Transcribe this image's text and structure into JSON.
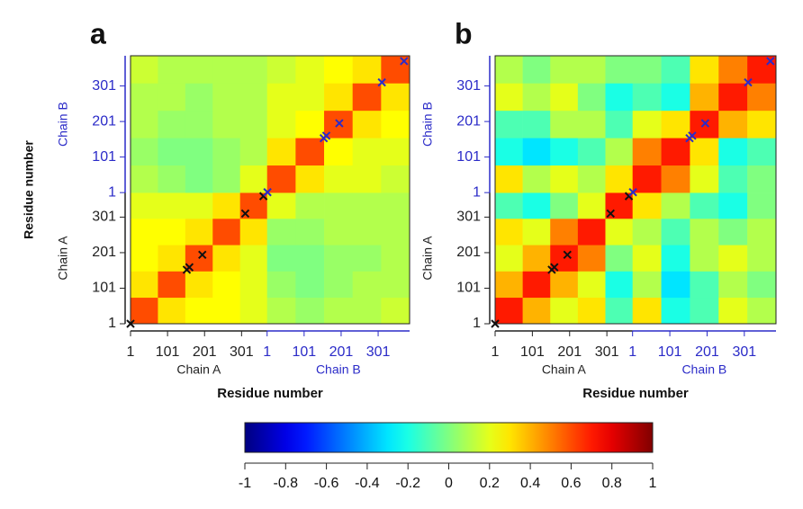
{
  "chart_data": [
    {
      "type": "heatmap",
      "panel": "a",
      "x_label": "Residue number",
      "y_label": "Residue number",
      "xlim": [
        1,
        755
      ],
      "ylim": [
        1,
        755
      ],
      "xticks": [
        1,
        101,
        201,
        301,
        {
          "value": 370,
          "label": "1"
        },
        {
          "value": 470,
          "label": "101"
        },
        {
          "value": 570,
          "label": "201"
        },
        {
          "value": 670,
          "label": "301"
        }
      ],
      "yticks": [
        1,
        101,
        201,
        301,
        {
          "value": 370,
          "label": "1"
        },
        {
          "value": 470,
          "label": "101"
        },
        {
          "value": 570,
          "label": "201"
        },
        {
          "value": 670,
          "label": "301"
        }
      ],
      "chains": [
        {
          "name": "Chain A",
          "start": 1,
          "color": "#222222"
        },
        {
          "name": "Chain B",
          "start": 370,
          "color": "#2b2bc8"
        }
      ],
      "bins": [
        1,
        75,
        149,
        223,
        297,
        370,
        447,
        524,
        601,
        678,
        755
      ],
      "z": [
        [
          0.6,
          0.3,
          0.25,
          0.25,
          0.2,
          0.1,
          0.05,
          0.1,
          0.1,
          0.15
        ],
        [
          0.3,
          0.6,
          0.3,
          0.25,
          0.2,
          0.05,
          0.0,
          0.05,
          0.1,
          0.1
        ],
        [
          0.25,
          0.3,
          0.6,
          0.3,
          0.2,
          0.0,
          0.0,
          0.05,
          0.05,
          0.1
        ],
        [
          0.25,
          0.25,
          0.3,
          0.6,
          0.3,
          0.05,
          0.05,
          0.1,
          0.1,
          0.1
        ],
        [
          0.2,
          0.2,
          0.2,
          0.3,
          0.6,
          0.2,
          0.1,
          0.1,
          0.1,
          0.1
        ],
        [
          0.1,
          0.05,
          0.0,
          0.05,
          0.2,
          0.6,
          0.3,
          0.2,
          0.2,
          0.15
        ],
        [
          0.05,
          0.0,
          0.0,
          0.05,
          0.1,
          0.3,
          0.6,
          0.25,
          0.2,
          0.2
        ],
        [
          0.1,
          0.05,
          0.05,
          0.1,
          0.1,
          0.2,
          0.25,
          0.6,
          0.3,
          0.25
        ],
        [
          0.1,
          0.1,
          0.05,
          0.1,
          0.1,
          0.2,
          0.2,
          0.3,
          0.6,
          0.3
        ],
        [
          0.15,
          0.1,
          0.1,
          0.1,
          0.1,
          0.15,
          0.2,
          0.25,
          0.3,
          0.6
        ]
      ],
      "markers": [
        {
          "color": "#111111",
          "x": [
            1,
            153,
            160,
            195,
            311,
            360
          ]
        },
        {
          "color": "#2b2bc8",
          "x": [
            371,
            523,
            530,
            565,
            680,
            740
          ]
        }
      ]
    },
    {
      "type": "heatmap",
      "panel": "b",
      "x_label": "Residue number",
      "y_label": "Residue number",
      "xlim": [
        1,
        755
      ],
      "ylim": [
        1,
        755
      ],
      "xticks": [
        1,
        101,
        201,
        301,
        {
          "value": 370,
          "label": "1"
        },
        {
          "value": 470,
          "label": "101"
        },
        {
          "value": 570,
          "label": "201"
        },
        {
          "value": 670,
          "label": "301"
        }
      ],
      "yticks": [
        1,
        101,
        201,
        301,
        {
          "value": 370,
          "label": "1"
        },
        {
          "value": 470,
          "label": "101"
        },
        {
          "value": 570,
          "label": "201"
        },
        {
          "value": 670,
          "label": "301"
        }
      ],
      "chains": [
        {
          "name": "Chain A",
          "start": 1,
          "color": "#222222"
        },
        {
          "name": "Chain B",
          "start": 370,
          "color": "#2b2bc8"
        }
      ],
      "bins": [
        1,
        75,
        149,
        223,
        297,
        370,
        447,
        524,
        601,
        678,
        755
      ],
      "z": [
        [
          0.7,
          0.4,
          0.2,
          0.3,
          -0.1,
          0.3,
          -0.2,
          -0.1,
          0.2,
          0.1
        ],
        [
          0.4,
          0.7,
          0.4,
          0.2,
          -0.2,
          0.1,
          -0.3,
          -0.1,
          0.1,
          0.0
        ],
        [
          0.2,
          0.4,
          0.7,
          0.5,
          0.0,
          0.2,
          -0.2,
          0.1,
          0.2,
          0.1
        ],
        [
          0.3,
          0.2,
          0.5,
          0.7,
          0.2,
          0.1,
          -0.1,
          0.1,
          0.0,
          0.1
        ],
        [
          -0.1,
          -0.2,
          0.0,
          0.2,
          0.7,
          0.3,
          0.1,
          -0.1,
          -0.2,
          0.0
        ],
        [
          0.3,
          0.1,
          0.2,
          0.1,
          0.3,
          0.7,
          0.5,
          0.2,
          -0.1,
          0.0
        ],
        [
          -0.2,
          -0.3,
          -0.2,
          -0.1,
          0.1,
          0.5,
          0.7,
          0.3,
          -0.2,
          -0.1
        ],
        [
          -0.1,
          -0.1,
          0.1,
          0.1,
          -0.1,
          0.2,
          0.3,
          0.7,
          0.4,
          0.3
        ],
        [
          0.2,
          0.1,
          0.2,
          0.0,
          -0.2,
          -0.1,
          -0.2,
          0.4,
          0.7,
          0.5
        ],
        [
          0.1,
          0.0,
          0.1,
          0.1,
          0.0,
          0.0,
          -0.1,
          0.3,
          0.5,
          0.7
        ]
      ],
      "markers": [
        {
          "color": "#111111",
          "x": [
            1,
            153,
            160,
            195,
            311,
            360
          ]
        },
        {
          "color": "#2b2bc8",
          "x": [
            371,
            523,
            530,
            565,
            680,
            740
          ]
        }
      ]
    },
    {
      "type": "colorbar",
      "colormap": "jet",
      "zlim": [
        -1,
        1
      ],
      "ticks": [
        -1,
        -0.8,
        -0.6,
        -0.4,
        -0.2,
        0,
        0.2,
        0.4,
        0.6,
        0.8,
        1
      ]
    }
  ]
}
